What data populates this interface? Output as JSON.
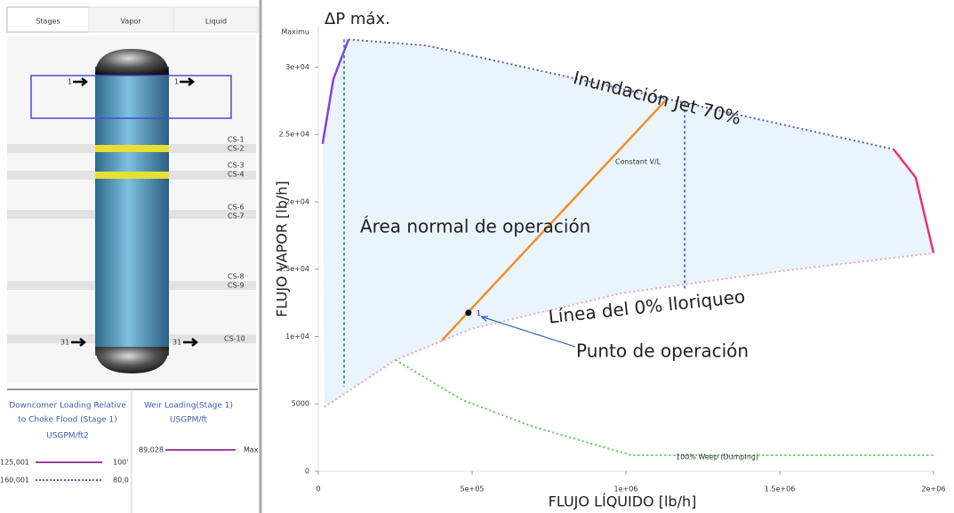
{
  "tabs": [
    "Stages",
    "Vapor",
    "Liquid"
  ],
  "column": {
    "stage_top": "1",
    "stage_bottom": "31",
    "sections": [
      "CS-1",
      "CS-2",
      "CS-3",
      "CS-4",
      "CS-6",
      "CS-7",
      "CS-8",
      "CS-9",
      "CS-10"
    ]
  },
  "downcomer_panel": {
    "title": [
      "Downcomer Loading Relative",
      "to Choke Flood (Stage 1)"
    ],
    "unit": "USGPM/ft2",
    "legend": [
      [
        "125,001",
        "100'"
      ],
      [
        "160,001",
        "80,0"
      ]
    ]
  },
  "weir_panel": {
    "title": [
      "Weir Loading(Stage 1)",
      "USGPM/ft"
    ],
    "legend": [
      [
        "89,028",
        "Max"
      ]
    ]
  },
  "chart_data": {
    "type": "line",
    "x_label": "FLUJO LÍQUIDO [lb/h]",
    "y_label": "FLUJO VAPOR [lb/h]",
    "y_max_label": "Maximu",
    "xlim": [
      0,
      2000000
    ],
    "ylim": [
      0,
      33000
    ],
    "xticks": [
      0,
      {
        "value": 500000,
        "label": "5e+05"
      },
      {
        "value": 1000000,
        "label": "1e+06"
      },
      {
        "value": 1500000,
        "label": "1.5e+06"
      },
      {
        "value": 2000000,
        "label": "2e+06"
      }
    ],
    "yticks": [
      0,
      5000,
      {
        "value": 10000,
        "label": "1e+04"
      },
      {
        "value": 15000,
        "label": "1.5e+04"
      },
      {
        "value": 20000,
        "label": "2e+04"
      },
      {
        "value": 25000,
        "label": "2.5e+04"
      },
      {
        "value": 30000,
        "label": "3e+04"
      }
    ],
    "series": [
      {
        "color": "#8a3fd6",
        "x": [
          14000,
          49000,
          98000
        ],
        "values": [
          24300,
          29100,
          32050
        ]
      },
      {
        "color": "#5a5fb0",
        "dash": "dotted",
        "x": [
          98000,
          353000,
          1870000
        ],
        "values": [
          32050,
          31600,
          23900
        ]
      },
      {
        "color": "#e8336e",
        "x": [
          1870000,
          1942000,
          2000000
        ],
        "values": [
          23900,
          21800,
          16200
        ]
      },
      {
        "color": "#f2a0b8",
        "dash": "dotted",
        "x": [
          20000,
          251000,
          497000,
          988000,
          1509000,
          2000000
        ],
        "values": [
          4760,
          8260,
          10575,
          13220,
          14870,
          16190
        ]
      },
      {
        "color": "#55cc55",
        "dash": "dotted",
        "x": [
          251000,
          468000,
          699000,
          1017000,
          2000000
        ],
        "values": [
          8260,
          5290,
          3300,
          1190,
          1190
        ]
      },
      {
        "color": "#f0902a",
        "x": [
          402000,
          1133000
        ],
        "values": [
          9720,
          27630
        ]
      },
      {
        "color": "#3f7fd0",
        "dash": "dashed",
        "x": [
          84000,
          84000
        ],
        "values": [
          32050,
          6280
        ]
      },
      {
        "color": "#3f7fd0",
        "dash": "dashed",
        "x": [
          1191000,
          1191000
        ],
        "values": [
          27230,
          13550
        ]
      }
    ],
    "operating_point": {
      "x": 488000,
      "y": 11765,
      "label": "1"
    },
    "annotations": [
      "ΔP máx.",
      "Inundación Jet 70%",
      "Área normal de operación",
      "Línea del 0% lloriqueo",
      "Punto de operación",
      "Constant V/L",
      "100% Weep (Dumping)"
    ]
  }
}
